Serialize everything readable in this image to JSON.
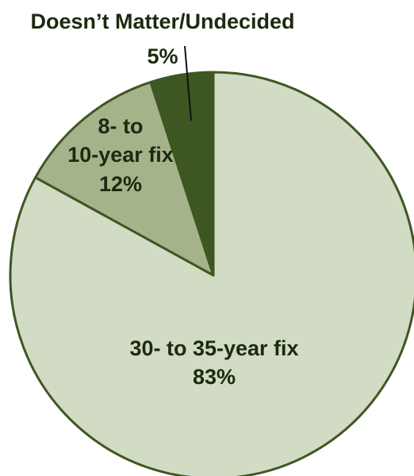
{
  "chart_data": {
    "type": "pie",
    "title": "",
    "slices": [
      {
        "lines": [
          "30- to 35-year fix"
        ],
        "pct_label": "83%",
        "value": 83,
        "color": "#d2dbc3"
      },
      {
        "lines": [
          "8- to",
          "10-year fix"
        ],
        "pct_label": "12%",
        "value": 12,
        "color": "#a5b38a"
      },
      {
        "lines": [
          "Doesn’t Matter/Undecided"
        ],
        "pct_label": "5%",
        "value": 5,
        "color": "#3e5722"
      }
    ],
    "stroke_color": "#3e5722"
  }
}
